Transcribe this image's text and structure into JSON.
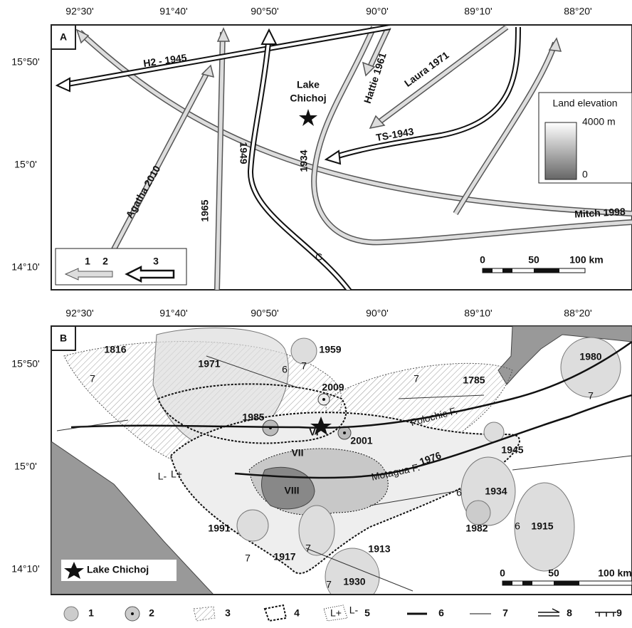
{
  "panel_a": {
    "label": "A",
    "lon_ticks": [
      "92°30'",
      "91°40'",
      "90°50'",
      "90°0'",
      "89°10'",
      "88°20'"
    ],
    "lat_ticks": [
      "15°50'",
      "15°0'",
      "14°10'"
    ],
    "tracks": [
      "H2 - 1945",
      "Hattie 1961",
      "Laura 1971",
      "TS-1943",
      "1934",
      "1949",
      "Agatha 2010",
      "1965",
      "Mitch 1998"
    ],
    "track_end": "C",
    "lake": [
      "Lake",
      "Chichoj"
    ],
    "elevation_legend": {
      "title": "Land elevation",
      "top": "4000 m",
      "bottom": "0"
    },
    "scale": [
      "0",
      "50",
      "100 km"
    ],
    "legend": [
      "1",
      "2",
      "3"
    ]
  },
  "panel_b": {
    "label": "B",
    "lon_ticks": [
      "92°30'",
      "91°40'",
      "90°50'",
      "90°0'",
      "89°10'",
      "88°20'"
    ],
    "lat_ticks": [
      "15°50'",
      "15°0'",
      "14°10'"
    ],
    "events": [
      "1816",
      "1971",
      "1959",
      "1980",
      "2009",
      "1785",
      "1985",
      "2001",
      "1945",
      "1976",
      "1934",
      "1982",
      "1915",
      "1991",
      "1917",
      "1913",
      "1930"
    ],
    "intensities": [
      "VI",
      "VII",
      "VIII"
    ],
    "isoseismal_values": [
      "7",
      "6",
      "7",
      "7",
      "7",
      "6",
      "6",
      "7",
      "7",
      "7"
    ],
    "faults": [
      "Polochic F.",
      "Motagua F."
    ],
    "polarity": [
      "L-",
      "L+"
    ],
    "lake": "Lake Chichoj",
    "scale": [
      "0",
      "50",
      "100 km"
    ],
    "legend": [
      "1",
      "2",
      "3",
      "4",
      "5",
      "6",
      "7",
      "8",
      "9"
    ],
    "legend_polarity": [
      "L+",
      "L-"
    ]
  }
}
